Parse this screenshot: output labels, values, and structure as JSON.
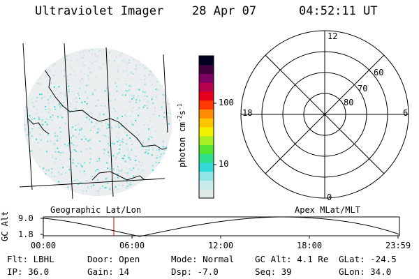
{
  "header": {
    "instrument": "Ultraviolet Imager",
    "date": "28 Apr 07",
    "time": "04:52:11 UT"
  },
  "colorbar": {
    "unit_label": "photon cm",
    "unit_exp1": "-2",
    "unit_s": "s",
    "unit_exp2": "-1",
    "tick_100": "100",
    "tick_10": "10",
    "colors": [
      "#dfe7e7",
      "#c8ecec",
      "#8fe4e4",
      "#33d9d9",
      "#2ee08a",
      "#55e633",
      "#a8ef22",
      "#f2f200",
      "#ffc400",
      "#ff8c00",
      "#ff3a00",
      "#e6001e",
      "#b8004d",
      "#7d0064",
      "#3f003c",
      "#000020"
    ]
  },
  "polar": {
    "mlt_12": "12",
    "mlt_18": "18",
    "mlt_6": "6",
    "mlt_0": "0",
    "lat_60": "60",
    "lat_70": "70",
    "lat_80": "80"
  },
  "orbit": {
    "ylabel": "GC Alt",
    "ytick_hi": "9.0",
    "ytick_lo": "1.8",
    "left_title": "Geographic Lat/Lon",
    "right_title": "Apex MLat/MLT",
    "xticks": [
      "00:00",
      "06:00",
      "12:00",
      "18:00",
      "23:59"
    ],
    "current_marker_color": "#cc0000"
  },
  "info": {
    "flt": "Flt: LBHL",
    "ip": "IP: 36.0",
    "door": "Door: Open",
    "gain": "Gain: 14",
    "mode": "Mode: Normal",
    "dsp": "Dsp:    -7.0",
    "gcalt": "GC Alt: 4.1 Re",
    "seq": "Seq: 39",
    "glat": "GLat: -24.5",
    "glon": "GLon:  34.0"
  }
}
